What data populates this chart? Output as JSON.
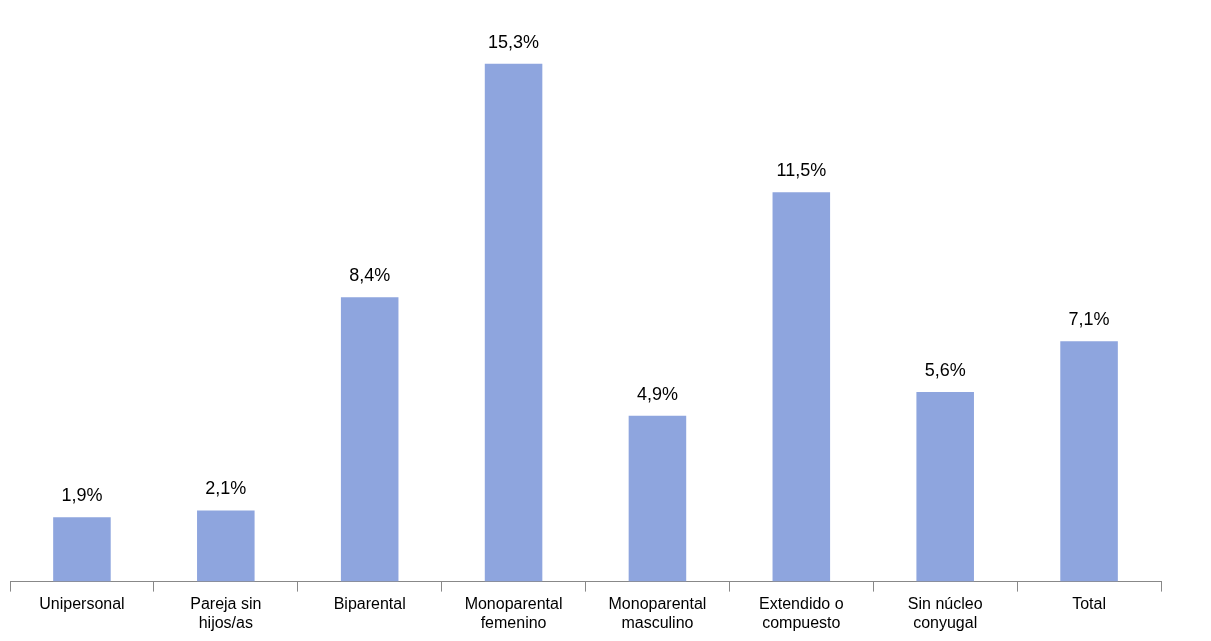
{
  "chart_data": {
    "type": "bar",
    "categories": [
      "Unipersonal",
      "Pareja sin hijos/as",
      "Biparental",
      "Monoparental femenino",
      "Monoparental masculino",
      "Extendido o compuesto",
      "Sin núcleo conyugal",
      "Total"
    ],
    "values": [
      1.9,
      2.1,
      8.4,
      15.3,
      4.9,
      11.5,
      5.6,
      7.1
    ],
    "value_labels": [
      "1,9%",
      "2,1%",
      "8,4%",
      "15,3%",
      "4,9%",
      "11,5%",
      "5,6%",
      "7,1%"
    ],
    "color": "#8ea5de",
    "grid": false,
    "legend": false
  }
}
